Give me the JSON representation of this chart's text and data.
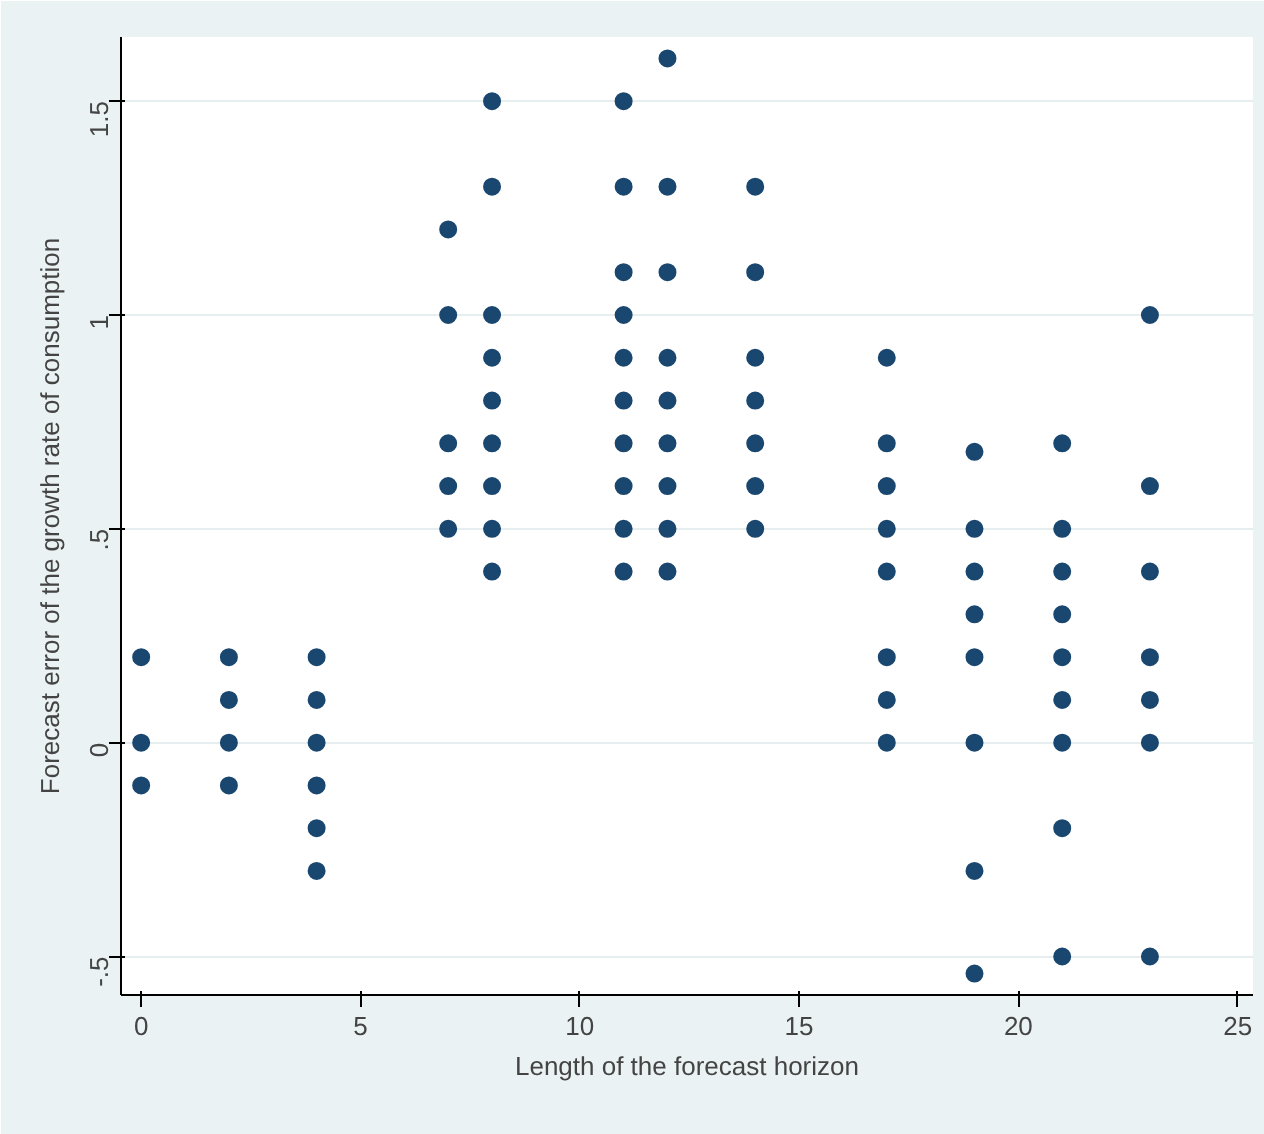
{
  "chart_data": {
    "type": "scatter",
    "xlabel": "Length of the forecast horizon",
    "ylabel": "Forecast error of the growth rate of consumption",
    "x": [
      0,
      0,
      0,
      2,
      2,
      2,
      2,
      4,
      4,
      4,
      4,
      4,
      4,
      7,
      7,
      7,
      7,
      7,
      8,
      8,
      8,
      8,
      8,
      8,
      8,
      8,
      8,
      11,
      11,
      11,
      11,
      11,
      11,
      11,
      11,
      11,
      11,
      12,
      12,
      12,
      12,
      12,
      12,
      12,
      12,
      12,
      14,
      14,
      14,
      14,
      14,
      14,
      14,
      17,
      17,
      17,
      17,
      17,
      17,
      17,
      17,
      19,
      19,
      19,
      19,
      19,
      19,
      19,
      19,
      21,
      21,
      21,
      21,
      21,
      21,
      21,
      21,
      21,
      23,
      23,
      23,
      23,
      23,
      23,
      23
    ],
    "values": [
      0.2,
      0,
      -0.1,
      0.2,
      0.1,
      0,
      -0.1,
      0.2,
      0.1,
      0,
      -0.1,
      -0.2,
      -0.3,
      1.2,
      1.0,
      0.7,
      0.6,
      0.5,
      1.5,
      1.3,
      1.0,
      0.9,
      0.8,
      0.7,
      0.6,
      0.5,
      0.4,
      1.5,
      1.3,
      1.1,
      1.0,
      0.9,
      0.8,
      0.7,
      0.6,
      0.5,
      0.4,
      1.6,
      1.3,
      1.1,
      0.9,
      0.8,
      0.7,
      0.6,
      0.5,
      0.4,
      1.3,
      1.1,
      0.9,
      0.8,
      0.7,
      0.6,
      0.5,
      0.9,
      0.7,
      0.6,
      0.5,
      0.4,
      0.2,
      0.1,
      0,
      0.68,
      0.5,
      0.4,
      0.3,
      0.2,
      0,
      -0.3,
      -0.54,
      0.7,
      0.5,
      0.4,
      0.3,
      0.2,
      0.1,
      0,
      -0.2,
      -0.5,
      1.0,
      0.6,
      0.4,
      0.2,
      0.1,
      0,
      -0.5
    ],
    "color": "#1a476f",
    "marker": "circle",
    "xlim": [
      -0.46,
      25.35
    ],
    "ylim": [
      -0.59,
      1.65
    ],
    "xticks": [
      0,
      5,
      10,
      15,
      20,
      25
    ],
    "yticks": [
      {
        "value": -0.5,
        "label": "-.5"
      },
      {
        "value": 0,
        "label": "0"
      },
      {
        "value": 0.5,
        "label": ".5"
      },
      {
        "value": 1,
        "label": "1"
      },
      {
        "value": 1.5,
        "label": "1.5"
      }
    ],
    "grid": "y"
  }
}
